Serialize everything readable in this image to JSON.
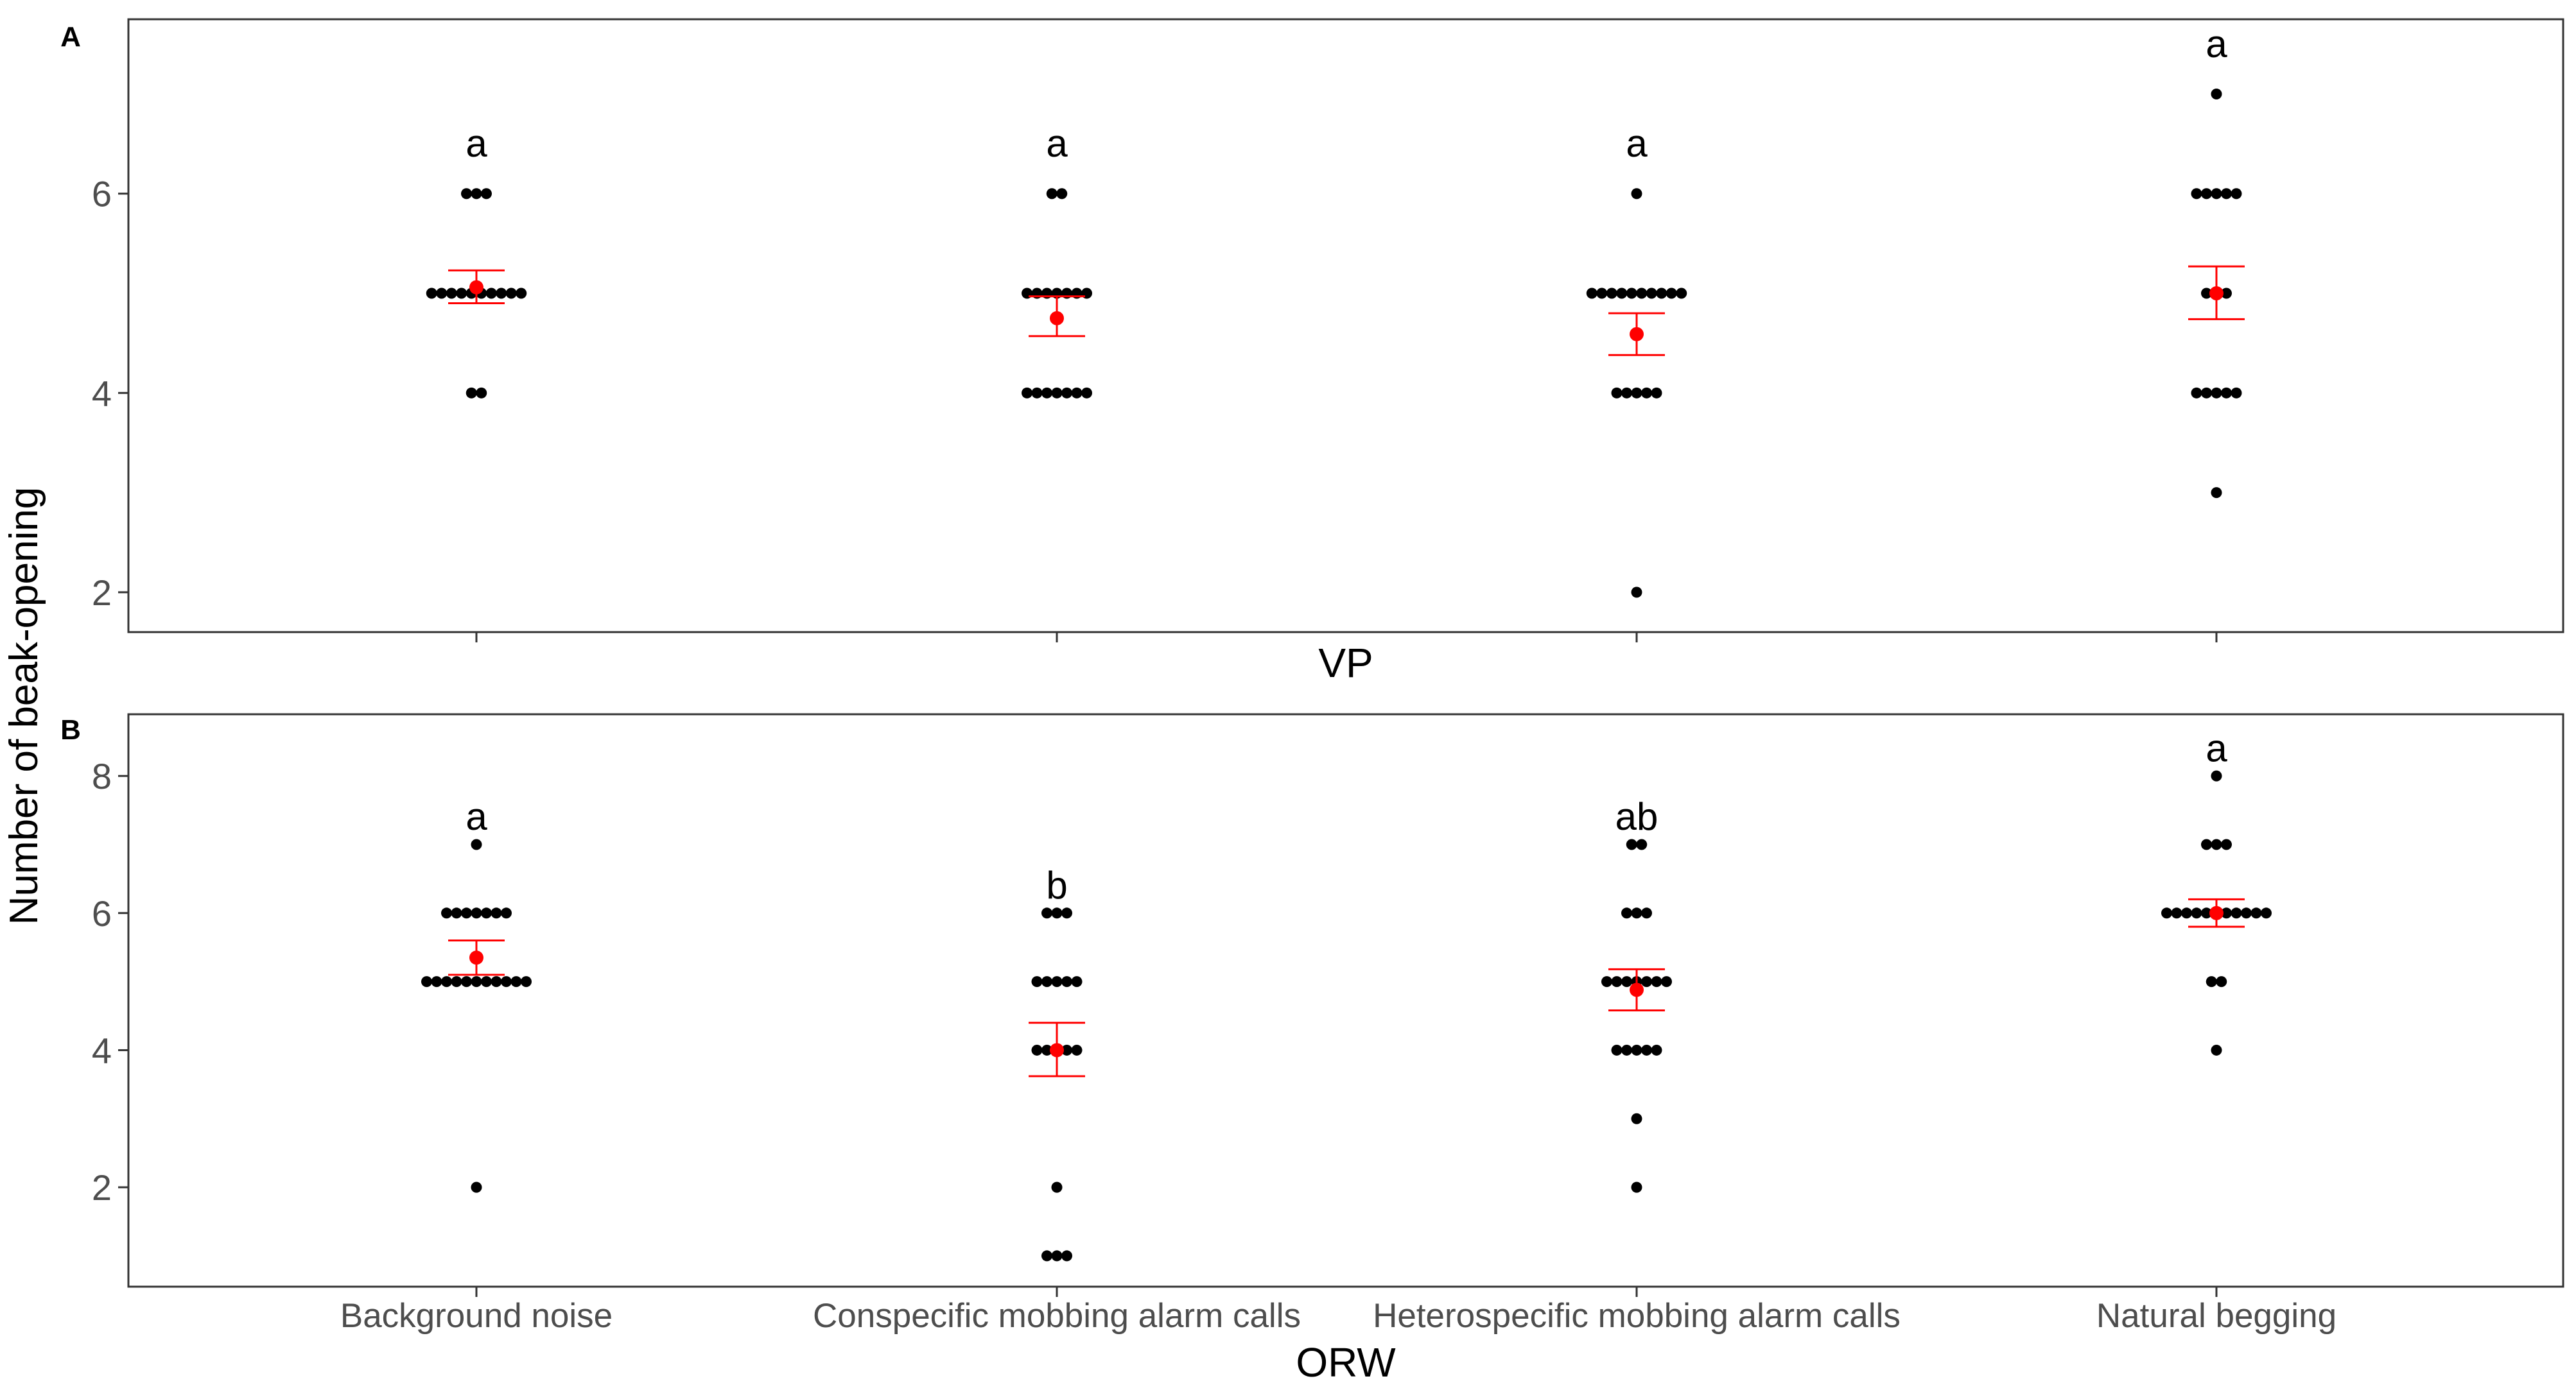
{
  "y_axis_label": "Number of beak-opening",
  "chart_data": [
    {
      "type": "scatter",
      "panel_label": "A",
      "xlabel": "VP",
      "ylabel": "Number of beak-opening",
      "categories": [
        "Background noise",
        "Conspecific mobbing alarm calls",
        "Heterospecific mobbing alarm calls",
        "Natural begging"
      ],
      "show_tick_labels": false,
      "ylim": [
        1.6,
        7.75
      ],
      "yticks": [
        2,
        4,
        6
      ],
      "grid": false,
      "points": [
        {
          "category": "Background noise",
          "counts": [
            {
              "y": 4,
              "n": 2
            },
            {
              "y": 5,
              "n": 10
            },
            {
              "y": 6,
              "n": 3
            }
          ]
        },
        {
          "category": "Conspecific mobbing alarm calls",
          "counts": [
            {
              "y": 4,
              "n": 7
            },
            {
              "y": 5,
              "n": 7
            },
            {
              "y": 6,
              "n": 2
            }
          ]
        },
        {
          "category": "Heterospecific mobbing alarm calls",
          "counts": [
            {
              "y": 2,
              "n": 1
            },
            {
              "y": 4,
              "n": 5
            },
            {
              "y": 5,
              "n": 10
            },
            {
              "y": 6,
              "n": 1
            }
          ]
        },
        {
          "category": "Natural begging",
          "counts": [
            {
              "y": 3,
              "n": 1
            },
            {
              "y": 4,
              "n": 5
            },
            {
              "y": 5,
              "n": 3
            },
            {
              "y": 6,
              "n": 5
            },
            {
              "y": 7,
              "n": 1
            }
          ]
        }
      ],
      "summary": [
        {
          "category": "Background noise",
          "mean": 5.06,
          "lower": 4.9,
          "upper": 5.23
        },
        {
          "category": "Conspecific mobbing alarm calls",
          "mean": 4.75,
          "lower": 4.57,
          "upper": 4.97
        },
        {
          "category": "Heterospecific mobbing alarm calls",
          "mean": 4.59,
          "lower": 4.38,
          "upper": 4.8
        },
        {
          "category": "Natural begging",
          "mean": 5.0,
          "lower": 4.74,
          "upper": 5.27
        }
      ],
      "letters": [
        {
          "category": "Background noise",
          "text": "a",
          "y": 6.5
        },
        {
          "category": "Conspecific mobbing alarm calls",
          "text": "a",
          "y": 6.5
        },
        {
          "category": "Heterospecific mobbing alarm calls",
          "text": "a",
          "y": 6.5
        },
        {
          "category": "Natural begging",
          "text": "a",
          "y": 7.5
        }
      ],
      "colors": {
        "points": "#000000",
        "summary": "#ff0000"
      }
    },
    {
      "type": "scatter",
      "panel_label": "B",
      "xlabel": "ORW",
      "ylabel": "Number of beak-opening",
      "categories": [
        "Background noise",
        "Conspecific mobbing alarm calls",
        "Heterospecific mobbing alarm calls",
        "Natural begging"
      ],
      "show_tick_labels": true,
      "ylim": [
        0.55,
        8.9
      ],
      "yticks": [
        2,
        4,
        6,
        8
      ],
      "grid": false,
      "points": [
        {
          "category": "Background noise",
          "counts": [
            {
              "y": 2,
              "n": 1
            },
            {
              "y": 5,
              "n": 11
            },
            {
              "y": 6,
              "n": 7
            },
            {
              "y": 7,
              "n": 1
            }
          ]
        },
        {
          "category": "Conspecific mobbing alarm calls",
          "counts": [
            {
              "y": 1,
              "n": 3
            },
            {
              "y": 2,
              "n": 1
            },
            {
              "y": 4,
              "n": 5
            },
            {
              "y": 5,
              "n": 5
            },
            {
              "y": 6,
              "n": 3
            }
          ]
        },
        {
          "category": "Heterospecific mobbing alarm calls",
          "counts": [
            {
              "y": 2,
              "n": 1
            },
            {
              "y": 3,
              "n": 1
            },
            {
              "y": 4,
              "n": 5
            },
            {
              "y": 5,
              "n": 7
            },
            {
              "y": 6,
              "n": 3
            },
            {
              "y": 7,
              "n": 2
            }
          ]
        },
        {
          "category": "Natural begging",
          "counts": [
            {
              "y": 4,
              "n": 1
            },
            {
              "y": 5,
              "n": 2
            },
            {
              "y": 6,
              "n": 11
            },
            {
              "y": 7,
              "n": 3
            },
            {
              "y": 8,
              "n": 1
            }
          ]
        }
      ],
      "summary": [
        {
          "category": "Background noise",
          "mean": 5.35,
          "lower": 5.1,
          "upper": 5.6
        },
        {
          "category": "Conspecific mobbing alarm calls",
          "mean": 4.0,
          "lower": 3.62,
          "upper": 4.4
        },
        {
          "category": "Heterospecific mobbing alarm calls",
          "mean": 4.88,
          "lower": 4.58,
          "upper": 5.18
        },
        {
          "category": "Natural begging",
          "mean": 6.0,
          "lower": 5.8,
          "upper": 6.2
        }
      ],
      "letters": [
        {
          "category": "Background noise",
          "text": "a",
          "y": 7.4
        },
        {
          "category": "Conspecific mobbing alarm calls",
          "text": "b",
          "y": 6.4
        },
        {
          "category": "Heterospecific mobbing alarm calls",
          "text": "ab",
          "y": 7.4
        },
        {
          "category": "Natural begging",
          "text": "a",
          "y": 8.4
        }
      ],
      "colors": {
        "points": "#000000",
        "summary": "#ff0000"
      }
    }
  ]
}
